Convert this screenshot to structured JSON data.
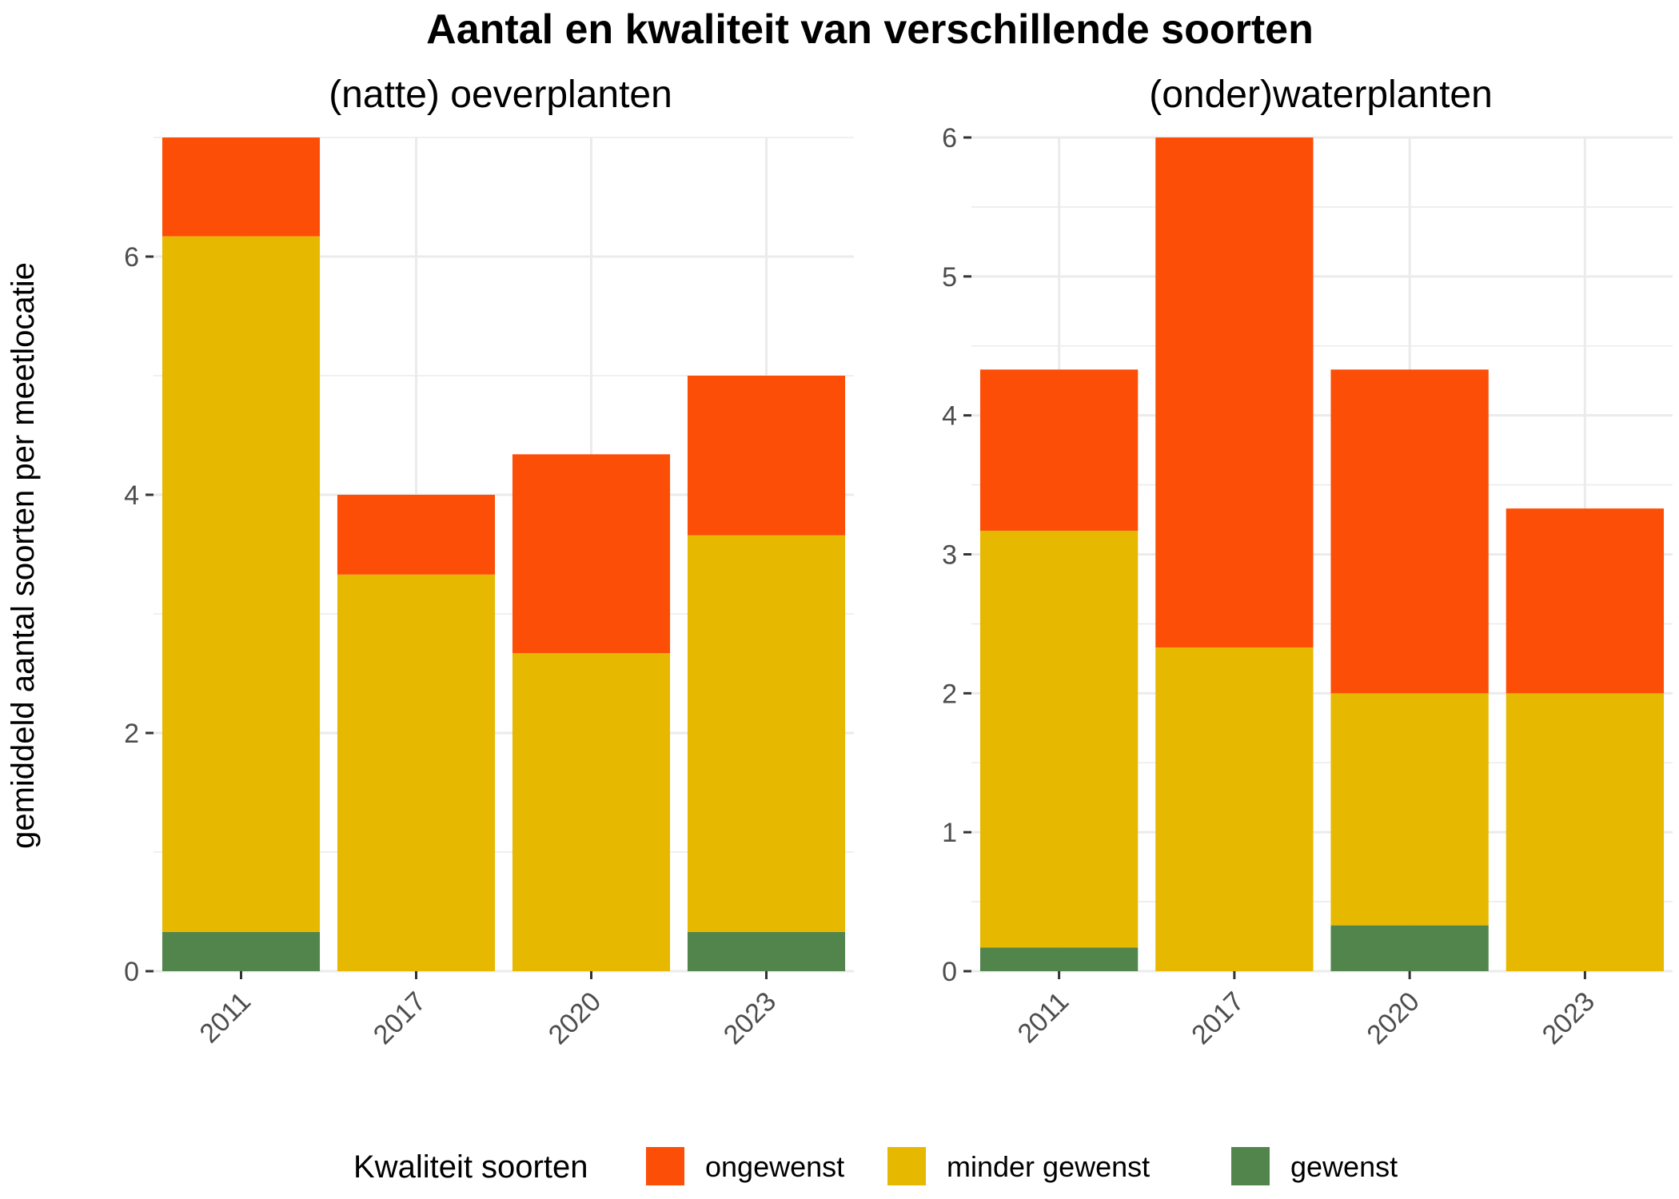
{
  "chart_data": {
    "type": "bar",
    "stacked": true,
    "title": "Aantal en kwaliteit van verschillende soorten",
    "ylabel": "gemiddeld aantal soorten per meetlocatie",
    "legend": {
      "title": "Kwaliteit soorten",
      "placement": "bottom",
      "entries": [
        {
          "name": "ongewenst",
          "color": "#FC4E07"
        },
        {
          "name": "minder gewenst",
          "color": "#E7B800"
        },
        {
          "name": "gewenst",
          "color": "#52854C"
        }
      ]
    },
    "grid": true,
    "panels": [
      {
        "title": "(natte) oeverplanten",
        "categories": [
          "2011",
          "2017",
          "2020",
          "2023"
        ],
        "ylim": [
          0,
          7
        ],
        "yticks": [
          "0",
          "2",
          "4",
          "6"
        ],
        "series": [
          {
            "name": "gewenst",
            "color": "#52854C",
            "values": [
              0.33,
              0,
              0,
              0.33
            ]
          },
          {
            "name": "minder gewenst",
            "color": "#E7B800",
            "values": [
              5.84,
              3.33,
              2.67,
              3.33
            ]
          },
          {
            "name": "ongewenst",
            "color": "#FC4E07",
            "values": [
              0.83,
              0.67,
              1.67,
              1.34
            ]
          }
        ]
      },
      {
        "title": "(onder)waterplanten",
        "categories": [
          "2011",
          "2017",
          "2020",
          "2023"
        ],
        "ylim": [
          0,
          6
        ],
        "yticks": [
          "0",
          "1",
          "2",
          "3",
          "4",
          "5",
          "6"
        ],
        "series": [
          {
            "name": "gewenst",
            "color": "#52854C",
            "values": [
              0.17,
              0,
              0.33,
              0
            ]
          },
          {
            "name": "minder gewenst",
            "color": "#E7B800",
            "values": [
              3.0,
              2.33,
              1.67,
              2.0
            ]
          },
          {
            "name": "ongewenst",
            "color": "#FC4E07",
            "values": [
              1.16,
              3.67,
              2.33,
              1.33
            ]
          }
        ]
      }
    ]
  }
}
